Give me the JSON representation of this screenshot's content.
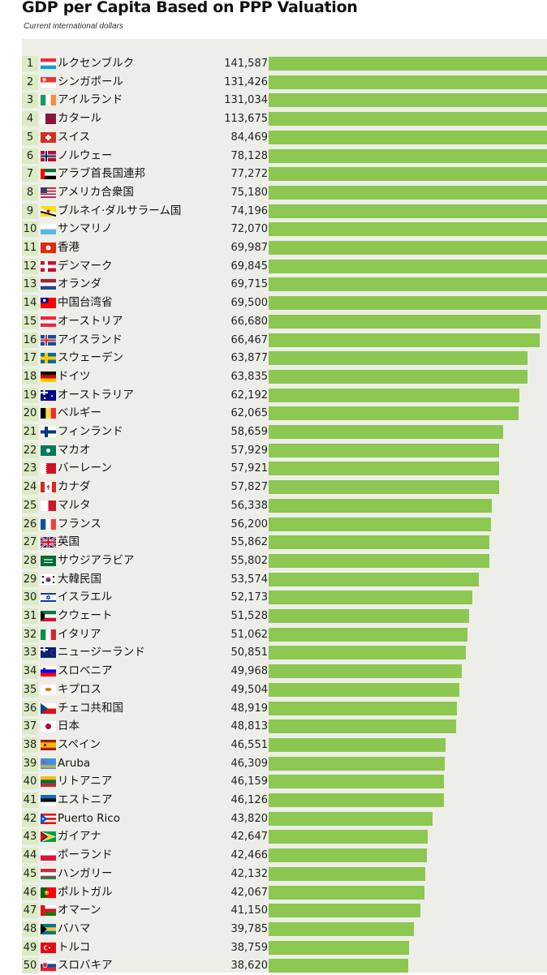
{
  "title": "GDP per Capita Based on PPP Valuation",
  "subtitle": "Current international dollars",
  "chart_data": {
    "type": "bar",
    "orientation": "horizontal",
    "title": "GDP per Capita Based on PPP Valuation",
    "subtitle": "Current international dollars",
    "xlim": [
      0,
      100000
    ],
    "bar_color": "#8bc751",
    "rank_bg_color": "#dcebc4",
    "panel_color": "#eeeee8",
    "rows": [
      {
        "rank": "1",
        "name": "ルクセンブルク",
        "label": "141,587",
        "value": 141587,
        "flag": "luxembourg-flag"
      },
      {
        "rank": "2",
        "name": "シンガポール",
        "label": "131,426",
        "value": 131426,
        "flag": "singapore-flag"
      },
      {
        "rank": "3",
        "name": "アイルランド",
        "label": "131,034",
        "value": 131034,
        "flag": "ireland-flag"
      },
      {
        "rank": "4",
        "name": "カタール",
        "label": "113,675",
        "value": 113675,
        "flag": "qatar-flag"
      },
      {
        "rank": "5",
        "name": "スイス",
        "label": "84,469",
        "value": 84469,
        "flag": "switzerland-flag"
      },
      {
        "rank": "6",
        "name": "ノルウェー",
        "label": "78,128",
        "value": 78128,
        "flag": "norway-flag"
      },
      {
        "rank": "7",
        "name": "アラブ首長国連邦",
        "label": "77,272",
        "value": 77272,
        "flag": "uae-flag"
      },
      {
        "rank": "8",
        "name": "アメリカ合衆国",
        "label": "75,180",
        "value": 75180,
        "flag": "usa-flag"
      },
      {
        "rank": "9",
        "name": "ブルネイ·ダルサラーム国",
        "label": "74,196",
        "value": 74196,
        "flag": "brunei-flag"
      },
      {
        "rank": "10",
        "name": "サンマリノ",
        "label": "72,070",
        "value": 72070,
        "flag": "san-marino-flag"
      },
      {
        "rank": "11",
        "name": "香港",
        "label": "69,987",
        "value": 69987,
        "flag": "hong-kong-flag"
      },
      {
        "rank": "12",
        "name": "デンマーク",
        "label": "69,845",
        "value": 69845,
        "flag": "denmark-flag"
      },
      {
        "rank": "13",
        "name": "オランダ",
        "label": "69,715",
        "value": 69715,
        "flag": "netherlands-flag"
      },
      {
        "rank": "14",
        "name": "中国台湾省",
        "label": "69,500",
        "value": 69500,
        "flag": "taiwan-flag"
      },
      {
        "rank": "15",
        "name": "オーストリア",
        "label": "66,680",
        "value": 66680,
        "flag": "austria-flag"
      },
      {
        "rank": "16",
        "name": "アイスランド",
        "label": "66,467",
        "value": 66467,
        "flag": "iceland-flag"
      },
      {
        "rank": "17",
        "name": "スウェーデン",
        "label": "63,877",
        "value": 63877,
        "flag": "sweden-flag"
      },
      {
        "rank": "18",
        "name": "ドイツ",
        "label": "63,835",
        "value": 63835,
        "flag": "germany-flag"
      },
      {
        "rank": "19",
        "name": "オーストラリア",
        "label": "62,192",
        "value": 62192,
        "flag": "australia-flag"
      },
      {
        "rank": "20",
        "name": "ベルギー",
        "label": "62,065",
        "value": 62065,
        "flag": "belgium-flag"
      },
      {
        "rank": "21",
        "name": "フィンランド",
        "label": "58,659",
        "value": 58659,
        "flag": "finland-flag"
      },
      {
        "rank": "22",
        "name": "マカオ",
        "label": "57,929",
        "value": 57929,
        "flag": "macao-flag"
      },
      {
        "rank": "23",
        "name": "バーレーン",
        "label": "57,921",
        "value": 57921,
        "flag": "bahrain-flag"
      },
      {
        "rank": "24",
        "name": "カナダ",
        "label": "57,827",
        "value": 57827,
        "flag": "canada-flag"
      },
      {
        "rank": "25",
        "name": "マルタ",
        "label": "56,338",
        "value": 56338,
        "flag": "malta-flag"
      },
      {
        "rank": "26",
        "name": "フランス",
        "label": "56,200",
        "value": 56200,
        "flag": "france-flag"
      },
      {
        "rank": "27",
        "name": "英国",
        "label": "55,862",
        "value": 55862,
        "flag": "uk-flag"
      },
      {
        "rank": "28",
        "name": "サウジアラビア",
        "label": "55,802",
        "value": 55802,
        "flag": "saudi-arabia-flag"
      },
      {
        "rank": "29",
        "name": "大韓民国",
        "label": "53,574",
        "value": 53574,
        "flag": "south-korea-flag"
      },
      {
        "rank": "30",
        "name": "イスラエル",
        "label": "52,173",
        "value": 52173,
        "flag": "israel-flag"
      },
      {
        "rank": "31",
        "name": "クウェート",
        "label": "51,528",
        "value": 51528,
        "flag": "kuwait-flag"
      },
      {
        "rank": "32",
        "name": "イタリア",
        "label": "51,062",
        "value": 51062,
        "flag": "italy-flag"
      },
      {
        "rank": "33",
        "name": "ニュージーランド",
        "label": "50,851",
        "value": 50851,
        "flag": "new-zealand-flag"
      },
      {
        "rank": "34",
        "name": "スロベニア",
        "label": "49,968",
        "value": 49968,
        "flag": "slovenia-flag"
      },
      {
        "rank": "35",
        "name": "キプロス",
        "label": "49,504",
        "value": 49504,
        "flag": "cyprus-flag"
      },
      {
        "rank": "36",
        "name": "チェコ共和国",
        "label": "48,919",
        "value": 48919,
        "flag": "czech-flag"
      },
      {
        "rank": "37",
        "name": "日本",
        "label": "48,813",
        "value": 48813,
        "flag": "japan-flag"
      },
      {
        "rank": "38",
        "name": "スペイン",
        "label": "46,551",
        "value": 46551,
        "flag": "spain-flag"
      },
      {
        "rank": "39",
        "name": "Aruba",
        "label": "46,309",
        "value": 46309,
        "flag": "aruba-flag"
      },
      {
        "rank": "40",
        "name": "リトアニア",
        "label": "46,159",
        "value": 46159,
        "flag": "lithuania-flag"
      },
      {
        "rank": "41",
        "name": "エストニア",
        "label": "46,126",
        "value": 46126,
        "flag": "estonia-flag"
      },
      {
        "rank": "42",
        "name": "Puerto Rico",
        "label": "43,820",
        "value": 43820,
        "flag": "puerto-rico-flag"
      },
      {
        "rank": "43",
        "name": "ガイアナ",
        "label": "42,647",
        "value": 42647,
        "flag": "guyana-flag"
      },
      {
        "rank": "44",
        "name": "ポーランド",
        "label": "42,466",
        "value": 42466,
        "flag": "poland-flag"
      },
      {
        "rank": "45",
        "name": "ハンガリー",
        "label": "42,132",
        "value": 42132,
        "flag": "hungary-flag"
      },
      {
        "rank": "46",
        "name": "ポルトガル",
        "label": "42,067",
        "value": 42067,
        "flag": "portugal-flag"
      },
      {
        "rank": "47",
        "name": "オマーン",
        "label": "41,150",
        "value": 41150,
        "flag": "oman-flag"
      },
      {
        "rank": "48",
        "name": "バハマ",
        "label": "39,785",
        "value": 39785,
        "flag": "bahamas-flag"
      },
      {
        "rank": "49",
        "name": "トルコ",
        "label": "38,759",
        "value": 38759,
        "flag": "turkey-flag"
      },
      {
        "rank": "50",
        "name": "スロバキア",
        "label": "38,620",
        "value": 38620,
        "flag": "slovakia-flag"
      }
    ]
  }
}
